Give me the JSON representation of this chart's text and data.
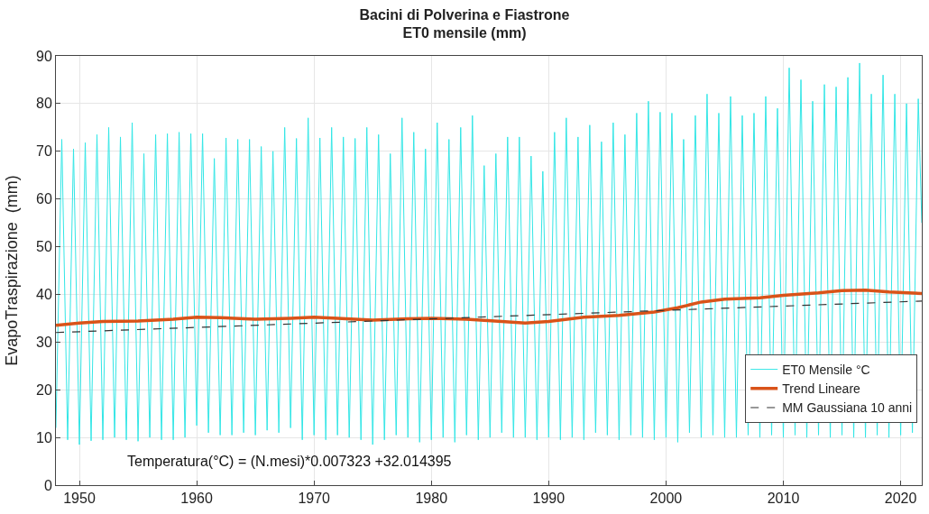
{
  "chart_data": {
    "type": "line",
    "title": "Bacini di Polverina e Fiastrone",
    "subtitle": "ET0 mensile (mm)",
    "ylabel": "EvapoTraspirazione  (mm)",
    "xlim": [
      1948,
      2021.8
    ],
    "xticks": [
      1950,
      1960,
      1970,
      1980,
      1990,
      2000,
      2010,
      2020
    ],
    "ylim": [
      0,
      90
    ],
    "yticks": [
      0,
      10,
      20,
      30,
      40,
      50,
      60,
      70,
      80,
      90
    ],
    "grid": true,
    "legend": "bottom right",
    "annotations": [
      "Temperatura(°C) = (N.mesi)*0.007323 +32.014395"
    ],
    "series": [
      {
        "name": "ET0 Mensile °C",
        "color": "#33e6e6",
        "line_style": "solid",
        "x": [
          1948,
          1948.5,
          1949,
          1949.5,
          1950,
          1950.5,
          1951,
          1951.5,
          1952,
          1952.5,
          1953,
          1953.5,
          1954,
          1954.5,
          1955,
          1955.5,
          1956,
          1956.5,
          1957,
          1957.5,
          1958,
          1958.5,
          1959,
          1959.5,
          1960,
          1960.5,
          1961,
          1961.5,
          1962,
          1962.5,
          1963,
          1963.5,
          1964,
          1964.5,
          1965,
          1965.5,
          1966,
          1966.5,
          1967,
          1967.5,
          1968,
          1968.5,
          1969,
          1969.5,
          1970,
          1970.5,
          1971,
          1971.5,
          1972,
          1972.5,
          1973,
          1973.5,
          1974,
          1974.5,
          1975,
          1975.5,
          1976,
          1976.5,
          1977,
          1977.5,
          1978,
          1978.5,
          1979,
          1979.5,
          1980,
          1980.5,
          1981,
          1981.5,
          1982,
          1982.5,
          1983,
          1983.5,
          1984,
          1984.5,
          1985,
          1985.5,
          1986,
          1986.5,
          1987,
          1987.5,
          1988,
          1988.5,
          1989,
          1989.5,
          1990,
          1990.5,
          1991,
          1991.5,
          1992,
          1992.5,
          1993,
          1993.5,
          1994,
          1994.5,
          1995,
          1995.5,
          1996,
          1996.5,
          1997,
          1997.5,
          1998,
          1998.5,
          1999,
          1999.5,
          2000,
          2000.5,
          2001,
          2001.5,
          2002,
          2002.5,
          2003,
          2003.5,
          2004,
          2004.5,
          2005,
          2005.5,
          2006,
          2006.5,
          2007,
          2007.5,
          2008,
          2008.5,
          2009,
          2009.5,
          2010,
          2010.5,
          2011,
          2011.5,
          2012,
          2012.5,
          2013,
          2013.5,
          2014,
          2014.5,
          2015,
          2015.5,
          2016,
          2016.5,
          2017,
          2017.5,
          2018,
          2018.5,
          2019,
          2019.5,
          2020,
          2020.5,
          2021,
          2021.5,
          2021.8
        ],
        "values": [
          12,
          72.5,
          9.5,
          70.5,
          8.5,
          71.8,
          9.3,
          73.5,
          9.5,
          75,
          10,
          73,
          9.5,
          76,
          9.2,
          69.5,
          10,
          73.5,
          9.5,
          73.7,
          9.5,
          74,
          10,
          73.7,
          12.5,
          73.7,
          11,
          68.5,
          10.5,
          72.8,
          10.5,
          72.5,
          11,
          72.5,
          10.5,
          71,
          11.5,
          70,
          11,
          75,
          12,
          72.7,
          9.5,
          77,
          10.5,
          72.8,
          9.5,
          75,
          10.5,
          73,
          10,
          72.7,
          9.5,
          75,
          8.5,
          73.5,
          9.5,
          69.5,
          10.5,
          77,
          10,
          74,
          9,
          70.5,
          9.5,
          76,
          10,
          72.5,
          9,
          75,
          10.5,
          77.5,
          9.5,
          67,
          10,
          69.5,
          11,
          73,
          10,
          73,
          10,
          69,
          9.5,
          65.8,
          10,
          74,
          9.5,
          77,
          10,
          73,
          9.5,
          75.5,
          11,
          72,
          10.5,
          76,
          9.5,
          73.5,
          10.5,
          78,
          10,
          80.5,
          9.5,
          78.2,
          10,
          78,
          9,
          72.5,
          11,
          77.5,
          10,
          82,
          10.5,
          78,
          10,
          81.5,
          10,
          77.5,
          10.5,
          78,
          10,
          81.5,
          10.5,
          79,
          10,
          87.5,
          10.5,
          85,
          10,
          80.5,
          10.5,
          84,
          10,
          83.5,
          10.5,
          85.5,
          10,
          88.5,
          10,
          82,
          10.5,
          86,
          10,
          82,
          10.5,
          80,
          11,
          81,
          55
        ]
      },
      {
        "name": "Trend Lineare",
        "color": "#d95319",
        "line_style": "solid",
        "x": [
          1948,
          1950,
          1952,
          1955,
          1958,
          1960,
          1962,
          1965,
          1968,
          1970,
          1972,
          1975,
          1978,
          1980,
          1983,
          1986,
          1988,
          1990,
          1993,
          1996,
          1999,
          2001,
          2003,
          2005,
          2008,
          2010,
          2013,
          2015,
          2017,
          2019,
          2021.8
        ],
        "values": [
          33.5,
          34,
          34.3,
          34.4,
          34.8,
          35.2,
          35.1,
          34.8,
          35,
          35.2,
          35,
          34.6,
          34.9,
          35,
          34.8,
          34.3,
          34,
          34.3,
          35.2,
          35.6,
          36.3,
          37.2,
          38.4,
          39,
          39.3,
          39.8,
          40.3,
          40.8,
          40.9,
          40.5,
          40.2
        ]
      },
      {
        "name": "MM Gaussiana 10 anni",
        "color": "#333333",
        "line_style": "dashed",
        "x": [
          1948,
          2021.8
        ],
        "values": [
          32.0,
          38.6
        ]
      }
    ]
  }
}
